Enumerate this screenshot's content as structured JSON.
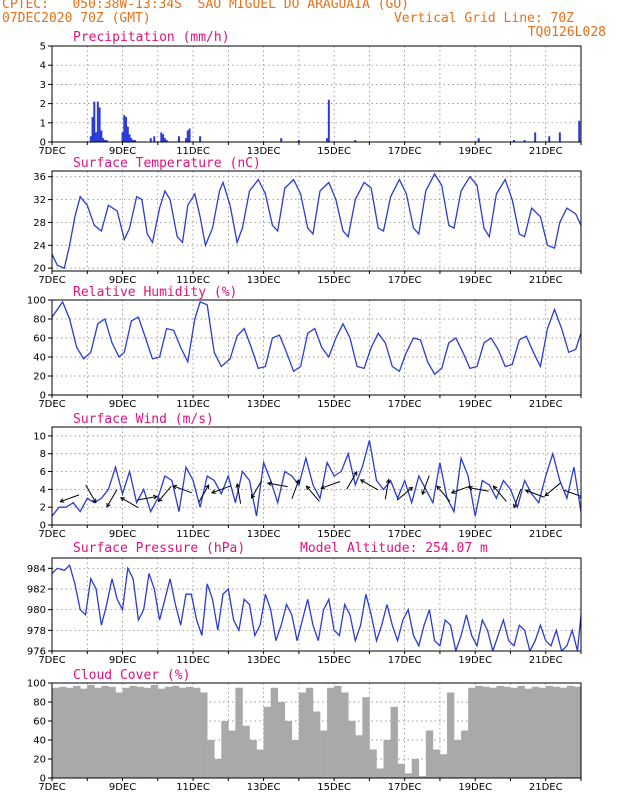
{
  "header": {
    "location": "CPTEC:   050:38W-13:34S  SAO MIGUEL DO ARAGUAIA (GO)",
    "date": "07DEC2020 70Z (GMT)",
    "grid_note": "Vertical Grid Line: 70Z",
    "code": "TQ0126L028"
  },
  "colors": {
    "header": "#e8701a",
    "title": "#e0117f",
    "line": "#2b3bd6",
    "cloud": "#a9a9a9"
  },
  "x_axis": {
    "labels": [
      "7DEC",
      "9DEC",
      "11DEC",
      "13DEC",
      "15DEC",
      "17DEC",
      "19DEC",
      "21DEC"
    ],
    "label_days": [
      0,
      2,
      4,
      6,
      8,
      10,
      12,
      14
    ],
    "range_days": [
      0,
      15
    ]
  },
  "chart_data": [
    {
      "id": "precip",
      "type": "bar",
      "title": "Precipitation (mm/h)",
      "ylim": [
        0,
        5
      ],
      "yticks": [
        0,
        1,
        2,
        3,
        4,
        5
      ],
      "x_days": [
        1.1,
        1.15,
        1.2,
        1.25,
        1.3,
        1.35,
        1.4,
        1.45,
        1.5,
        1.55,
        2.0,
        2.05,
        2.1,
        2.15,
        2.2,
        2.25,
        2.3,
        2.35,
        2.8,
        2.9,
        3.1,
        3.15,
        3.2,
        3.25,
        3.6,
        3.8,
        3.85,
        3.9,
        4.2,
        6.5,
        7.0,
        7.8,
        7.85,
        8.6,
        12.1,
        13.1,
        13.4,
        13.7,
        14.1,
        14.4,
        14.95
      ],
      "values": [
        0.3,
        1.3,
        2.1,
        0.5,
        2.1,
        1.8,
        0.6,
        0.2,
        0.1,
        0.1,
        0.5,
        1.4,
        1.3,
        0.8,
        0.4,
        0.2,
        0.1,
        0.1,
        0.2,
        0.3,
        0.5,
        0.4,
        0.2,
        0.1,
        0.3,
        0.2,
        0.6,
        0.7,
        0.3,
        0.2,
        0.1,
        0.2,
        2.2,
        0.1,
        0.2,
        0.1,
        0.1,
        0.5,
        0.3,
        0.5,
        1.1
      ]
    },
    {
      "id": "temp",
      "type": "line",
      "title": "Surface Temperature (nC)",
      "ylim": [
        19.5,
        37
      ],
      "yticks": [
        20,
        24,
        28,
        32,
        36
      ],
      "x_days": [
        0,
        0.15,
        0.35,
        0.5,
        0.65,
        0.8,
        1.0,
        1.2,
        1.4,
        1.6,
        1.85,
        2.05,
        2.2,
        2.4,
        2.55,
        2.7,
        2.85,
        3.05,
        3.2,
        3.35,
        3.55,
        3.7,
        3.85,
        4.05,
        4.2,
        4.35,
        4.55,
        4.75,
        4.85,
        5.05,
        5.25,
        5.4,
        5.6,
        5.85,
        6.05,
        6.25,
        6.4,
        6.6,
        6.85,
        7.05,
        7.25,
        7.4,
        7.6,
        7.85,
        8.05,
        8.25,
        8.4,
        8.6,
        8.85,
        9.05,
        9.25,
        9.4,
        9.6,
        9.85,
        10.05,
        10.25,
        10.4,
        10.6,
        10.85,
        11.05,
        11.25,
        11.4,
        11.6,
        11.85,
        12.05,
        12.25,
        12.4,
        12.6,
        12.85,
        13.05,
        13.25,
        13.4,
        13.6,
        13.85,
        14.05,
        14.25,
        14.4,
        14.6,
        14.85,
        15.0
      ],
      "values": [
        22.5,
        20.5,
        20.0,
        24.0,
        29.0,
        32.5,
        31.0,
        27.5,
        26.5,
        31.0,
        30.0,
        25.0,
        27.0,
        32.5,
        32.0,
        26.0,
        24.5,
        30.5,
        33.5,
        32.0,
        25.5,
        24.5,
        31.0,
        33.0,
        29.0,
        24.0,
        27.0,
        33.5,
        35.0,
        31.0,
        24.5,
        27.0,
        33.5,
        35.5,
        33.0,
        27.5,
        26.5,
        34.0,
        35.5,
        33.0,
        27.0,
        26.0,
        33.5,
        35.0,
        32.0,
        26.5,
        25.5,
        32.0,
        35.0,
        34.0,
        27.0,
        26.5,
        32.5,
        35.5,
        33.0,
        27.0,
        26.0,
        33.5,
        36.5,
        34.5,
        27.5,
        27.0,
        33.5,
        36.0,
        34.5,
        27.0,
        25.5,
        33.0,
        35.5,
        32.0,
        26.0,
        25.5,
        30.5,
        29.0,
        24.0,
        23.5,
        28.0,
        30.5,
        29.5,
        27.5
      ]
    },
    {
      "id": "rh",
      "type": "line",
      "title": "Relative Humidity (%)",
      "ylim": [
        0,
        100
      ],
      "yticks": [
        0,
        20,
        40,
        60,
        80,
        100
      ],
      "x_days": [
        0,
        0.15,
        0.3,
        0.5,
        0.7,
        0.9,
        1.1,
        1.3,
        1.5,
        1.7,
        1.9,
        2.05,
        2.25,
        2.45,
        2.65,
        2.85,
        3.05,
        3.25,
        3.45,
        3.65,
        3.85,
        4.05,
        4.2,
        4.4,
        4.6,
        4.8,
        5.05,
        5.25,
        5.45,
        5.65,
        5.85,
        6.05,
        6.25,
        6.45,
        6.65,
        6.85,
        7.05,
        7.25,
        7.45,
        7.65,
        7.85,
        8.05,
        8.25,
        8.45,
        8.65,
        8.85,
        9.05,
        9.25,
        9.45,
        9.65,
        9.85,
        10.05,
        10.25,
        10.45,
        10.65,
        10.85,
        11.05,
        11.25,
        11.45,
        11.65,
        11.85,
        12.05,
        12.25,
        12.45,
        12.65,
        12.85,
        13.05,
        13.25,
        13.45,
        13.65,
        13.85,
        14.05,
        14.25,
        14.45,
        14.65,
        14.85,
        15.0
      ],
      "values": [
        82,
        90,
        98,
        80,
        50,
        38,
        45,
        75,
        80,
        55,
        40,
        45,
        78,
        82,
        60,
        38,
        40,
        70,
        68,
        50,
        35,
        80,
        98,
        95,
        45,
        30,
        38,
        62,
        70,
        50,
        28,
        30,
        60,
        63,
        45,
        25,
        30,
        65,
        70,
        50,
        40,
        60,
        75,
        60,
        30,
        28,
        50,
        65,
        55,
        30,
        25,
        45,
        60,
        58,
        35,
        22,
        28,
        55,
        60,
        45,
        28,
        30,
        55,
        60,
        48,
        30,
        32,
        58,
        62,
        45,
        30,
        70,
        90,
        70,
        45,
        48,
        65
      ]
    },
    {
      "id": "wind",
      "type": "line",
      "title": "Surface Wind (m/s)",
      "ylim": [
        0,
        11
      ],
      "yticks": [
        0,
        2,
        4,
        6,
        8,
        10
      ],
      "x_days": [
        0,
        0.2,
        0.4,
        0.6,
        0.8,
        1.0,
        1.2,
        1.4,
        1.6,
        1.8,
        2.0,
        2.2,
        2.4,
        2.6,
        2.8,
        3.0,
        3.2,
        3.4,
        3.6,
        3.8,
        4.0,
        4.2,
        4.4,
        4.6,
        4.8,
        5.0,
        5.2,
        5.4,
        5.6,
        5.8,
        6.0,
        6.2,
        6.4,
        6.6,
        6.8,
        7.0,
        7.2,
        7.4,
        7.6,
        7.8,
        8.0,
        8.2,
        8.4,
        8.6,
        8.8,
        9.0,
        9.2,
        9.4,
        9.6,
        9.8,
        10.0,
        10.2,
        10.4,
        10.6,
        10.8,
        11.0,
        11.2,
        11.4,
        11.6,
        11.8,
        12.0,
        12.2,
        12.4,
        12.6,
        12.8,
        13.0,
        13.2,
        13.4,
        13.6,
        13.8,
        14.0,
        14.2,
        14.4,
        14.6,
        14.8,
        15.0
      ],
      "values": [
        1.0,
        2.0,
        2.0,
        2.5,
        1.5,
        3.0,
        2.5,
        3.0,
        4.0,
        6.5,
        3.5,
        6.0,
        2.5,
        4.0,
        1.5,
        3.0,
        5.5,
        5.0,
        1.5,
        6.5,
        5.0,
        2.0,
        5.5,
        5.0,
        3.5,
        5.5,
        2.5,
        6.0,
        5.0,
        1.0,
        7.0,
        5.0,
        2.5,
        6.0,
        5.5,
        4.5,
        7.5,
        4.5,
        3.0,
        7.0,
        5.5,
        6.0,
        8.0,
        4.5,
        6.5,
        9.5,
        5.0,
        4.0,
        5.0,
        3.0,
        5.0,
        2.5,
        5.5,
        4.0,
        2.5,
        7.0,
        3.0,
        1.5,
        7.5,
        5.5,
        1.0,
        5.0,
        4.5,
        3.0,
        5.0,
        4.0,
        2.0,
        5.0,
        3.5,
        2.5,
        5.5,
        8.0,
        5.0,
        3.0,
        6.5,
        1.5
      ],
      "arrows": {
        "x_days": [
          0.5,
          1.1,
          1.7,
          2.2,
          2.7,
          3.2,
          3.7,
          4.3,
          4.8,
          5.3,
          5.8,
          6.4,
          6.9,
          7.4,
          7.9,
          8.5,
          9.0,
          9.5,
          10.0,
          10.6,
          11.1,
          11.6,
          12.1,
          12.7,
          13.2,
          13.7,
          14.2,
          14.8
        ],
        "speed": [
          3.0,
          3.5,
          3.0,
          2.5,
          3.0,
          3.5,
          4.0,
          3.5,
          4.0,
          3.5,
          4.0,
          4.5,
          4.0,
          3.5,
          4.5,
          5.0,
          4.5,
          4.0,
          3.5,
          4.5,
          3.5,
          4.0,
          4.0,
          3.5,
          3.0,
          3.5,
          4.0,
          3.5
        ],
        "dir_deg": [
          200,
          300,
          240,
          150,
          10,
          230,
          160,
          60,
          200,
          100,
          240,
          170,
          70,
          130,
          200,
          60,
          150,
          80,
          40,
          250,
          130,
          200,
          170,
          130,
          250,
          160,
          220,
          340
        ]
      }
    },
    {
      "id": "pres",
      "type": "line",
      "title": "Surface Pressure (hPa)",
      "note": "Model Altitude: 254.07 m",
      "ylim": [
        976,
        985
      ],
      "yticks": [
        976,
        978,
        980,
        982,
        984
      ],
      "x_days": [
        0,
        0.15,
        0.35,
        0.5,
        0.65,
        0.8,
        0.95,
        1.1,
        1.25,
        1.4,
        1.55,
        1.7,
        1.85,
        2.0,
        2.15,
        2.3,
        2.45,
        2.6,
        2.75,
        2.9,
        3.05,
        3.2,
        3.35,
        3.5,
        3.65,
        3.8,
        3.95,
        4.1,
        4.25,
        4.4,
        4.55,
        4.7,
        4.85,
        5.0,
        5.15,
        5.3,
        5.45,
        5.6,
        5.75,
        5.9,
        6.05,
        6.2,
        6.35,
        6.5,
        6.65,
        6.8,
        6.95,
        7.1,
        7.25,
        7.4,
        7.55,
        7.7,
        7.85,
        8.0,
        8.15,
        8.3,
        8.45,
        8.6,
        8.75,
        8.9,
        9.05,
        9.2,
        9.35,
        9.5,
        9.65,
        9.8,
        9.95,
        10.1,
        10.25,
        10.4,
        10.55,
        10.7,
        10.85,
        11.0,
        11.15,
        11.3,
        11.45,
        11.6,
        11.75,
        11.9,
        12.05,
        12.2,
        12.35,
        12.5,
        12.65,
        12.8,
        12.95,
        13.1,
        13.25,
        13.4,
        13.55,
        13.7,
        13.85,
        14.0,
        14.15,
        14.3,
        14.45,
        14.6,
        14.75,
        14.9,
        15.0
      ],
      "values": [
        983.5,
        984.0,
        983.8,
        984.3,
        982.5,
        980.0,
        979.5,
        983.0,
        982.0,
        978.5,
        980.5,
        983.0,
        981.0,
        980.0,
        984.0,
        983.0,
        979.0,
        980.0,
        983.5,
        982.0,
        979.0,
        981.0,
        983.0,
        980.5,
        978.5,
        981.5,
        981.5,
        979.0,
        977.5,
        982.5,
        981.0,
        978.0,
        981.5,
        982.0,
        979.0,
        978.0,
        981.0,
        980.5,
        977.5,
        978.5,
        981.5,
        980.0,
        977.0,
        978.5,
        980.5,
        979.5,
        977.0,
        979.0,
        981.0,
        978.5,
        977.0,
        980.0,
        981.0,
        978.0,
        977.5,
        980.5,
        979.5,
        977.0,
        978.5,
        981.5,
        979.5,
        977.0,
        978.5,
        980.5,
        978.5,
        977.0,
        979.0,
        980.0,
        977.5,
        976.5,
        978.5,
        980.0,
        977.0,
        976.5,
        979.0,
        978.5,
        976.0,
        977.5,
        979.5,
        977.5,
        976.5,
        979.0,
        978.0,
        976.0,
        977.5,
        979.0,
        977.0,
        976.5,
        978.5,
        978.0,
        976.0,
        977.0,
        978.5,
        977.0,
        976.5,
        978.0,
        976.0,
        976.5,
        978.0,
        976.0,
        979.5
      ]
    },
    {
      "id": "cloud",
      "type": "area",
      "title": "Cloud Cover (%)",
      "ylim": [
        0,
        100
      ],
      "yticks": [
        0,
        20,
        40,
        60,
        80,
        100
      ],
      "x_days": [
        0,
        0.2,
        0.4,
        0.6,
        0.8,
        1.0,
        1.2,
        1.4,
        1.6,
        1.8,
        2.0,
        2.2,
        2.4,
        2.6,
        2.8,
        3.0,
        3.2,
        3.4,
        3.6,
        3.8,
        4.0,
        4.2,
        4.4,
        4.6,
        4.8,
        5.0,
        5.2,
        5.4,
        5.6,
        5.8,
        6.0,
        6.2,
        6.4,
        6.6,
        6.8,
        7.0,
        7.2,
        7.4,
        7.6,
        7.8,
        8.0,
        8.2,
        8.4,
        8.6,
        8.8,
        9.0,
        9.2,
        9.4,
        9.6,
        9.8,
        10.0,
        10.2,
        10.4,
        10.6,
        10.8,
        11.0,
        11.2,
        11.4,
        11.6,
        11.8,
        12.0,
        12.2,
        12.4,
        12.6,
        12.8,
        13.0,
        13.2,
        13.4,
        13.6,
        13.8,
        14.0,
        14.2,
        14.4,
        14.6,
        14.8,
        15.0
      ],
      "values": [
        95,
        96,
        95,
        97,
        94,
        98,
        95,
        97,
        96,
        90,
        95,
        97,
        96,
        95,
        98,
        94,
        96,
        97,
        95,
        96,
        95,
        90,
        40,
        20,
        60,
        50,
        95,
        55,
        40,
        30,
        75,
        95,
        80,
        60,
        40,
        90,
        95,
        70,
        50,
        95,
        97,
        90,
        60,
        45,
        85,
        30,
        10,
        40,
        75,
        15,
        5,
        20,
        2,
        50,
        30,
        25,
        90,
        40,
        50,
        95,
        97,
        96,
        95,
        97,
        96,
        95,
        97,
        94,
        96,
        95,
        97,
        96,
        95,
        97,
        96,
        95
      ]
    }
  ]
}
